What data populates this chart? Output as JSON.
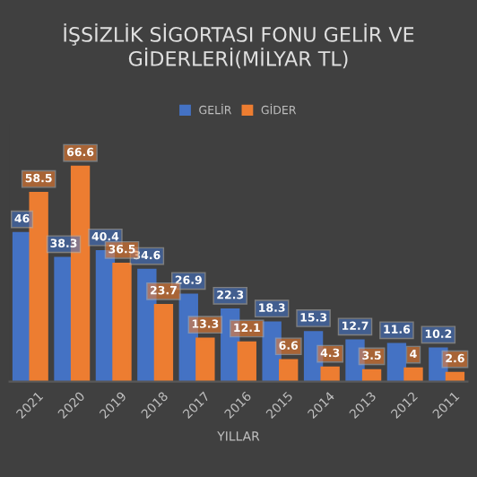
{
  "chart_data": {
    "type": "bar",
    "title": "İŞSİZLİK SİGORTASI FONU GELİR VE GİDERLERİ(MİLYAR TL)",
    "xlabel": "YILLAR",
    "categories": [
      "2021",
      "2020",
      "2019",
      "2018",
      "2017",
      "2016",
      "2015",
      "2014",
      "2013",
      "2012",
      "2011"
    ],
    "series": [
      {
        "name": "GELİR",
        "color": "#4472c4",
        "values": [
          46,
          38.3,
          40.4,
          34.6,
          26.9,
          22.3,
          18.3,
          15.3,
          12.7,
          11.6,
          10.2
        ]
      },
      {
        "name": "GİDER",
        "color": "#ed7d31",
        "values": [
          58.5,
          66.6,
          36.5,
          23.7,
          13.3,
          12.1,
          6.6,
          4.3,
          3.5,
          4,
          2.6
        ]
      }
    ],
    "data_labels": true,
    "legend": "top",
    "grid": false
  }
}
